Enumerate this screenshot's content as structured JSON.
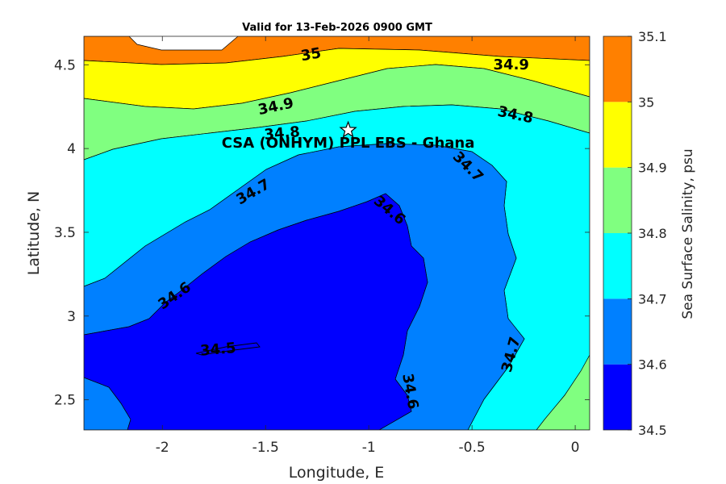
{
  "chart_data": {
    "type": "contour",
    "title": "Valid for 13-Feb-2026 0900 GMT",
    "xlabel": "Longitude, E",
    "ylabel": "Latitude, N",
    "xlim": [
      -2.38,
      0.07
    ],
    "ylim": [
      2.32,
      4.67
    ],
    "x_ticks": [
      -2,
      -1.5,
      -1,
      -0.5,
      0
    ],
    "x_tick_labels": [
      "-2",
      "-1.5",
      "-1",
      "-0.5",
      "0"
    ],
    "y_ticks": [
      2.5,
      3,
      3.5,
      4,
      4.5
    ],
    "y_tick_labels": [
      "2.5",
      "3",
      "3.5",
      "4",
      "4.5"
    ],
    "grid": false,
    "colorbar": {
      "label": "Sea Surface Salinity, psu",
      "ticks": [
        34.5,
        34.6,
        34.7,
        34.8,
        34.9,
        35,
        35.1
      ],
      "tick_labels": [
        "34.5",
        "34.6",
        "34.7",
        "34.8",
        "34.9",
        "35",
        "35.1"
      ],
      "levels": [
        {
          "min": 34.5,
          "max": 34.6,
          "color": "#0000ff"
        },
        {
          "min": 34.6,
          "max": 34.7,
          "color": "#0080ff"
        },
        {
          "min": 34.7,
          "max": 34.8,
          "color": "#00ffff"
        },
        {
          "min": 34.8,
          "max": 34.9,
          "color": "#80ff80"
        },
        {
          "min": 34.9,
          "max": 35.0,
          "color": "#ffff00"
        },
        {
          "min": 35.0,
          "max": 35.1,
          "color": "#ff8000"
        }
      ]
    },
    "contour_labels": [
      {
        "text": "35",
        "lon": -1.28,
        "lat": 4.56,
        "angle": -10
      },
      {
        "text": "34.9",
        "lon": -0.31,
        "lat": 4.5,
        "angle": 0
      },
      {
        "text": "34.9",
        "lon": -1.45,
        "lat": 4.25,
        "angle": -12
      },
      {
        "text": "34.8",
        "lon": -0.29,
        "lat": 4.2,
        "angle": 12
      },
      {
        "text": "34.8",
        "lon": -1.42,
        "lat": 4.09,
        "angle": -5
      },
      {
        "text": "34.7",
        "lon": -0.52,
        "lat": 3.89,
        "angle": 45
      },
      {
        "text": "34.7",
        "lon": -1.56,
        "lat": 3.74,
        "angle": -30
      },
      {
        "text": "34.6",
        "lon": -0.9,
        "lat": 3.63,
        "angle": 40
      },
      {
        "text": "34.6",
        "lon": -1.94,
        "lat": 3.12,
        "angle": -35
      },
      {
        "text": "34.5",
        "lon": -1.73,
        "lat": 2.8,
        "angle": -5
      },
      {
        "text": "34.6",
        "lon": -0.8,
        "lat": 2.55,
        "angle": 80
      },
      {
        "text": "34.7",
        "lon": -0.31,
        "lat": 2.77,
        "angle": -75
      }
    ],
    "annotation": {
      "text": "CSA (ONHYM) PPL EBS  - Ghana",
      "marker": "star",
      "marker_lon": -1.1,
      "marker_lat": 4.11,
      "text_lon": -1.1,
      "text_lat": 4.04
    }
  }
}
